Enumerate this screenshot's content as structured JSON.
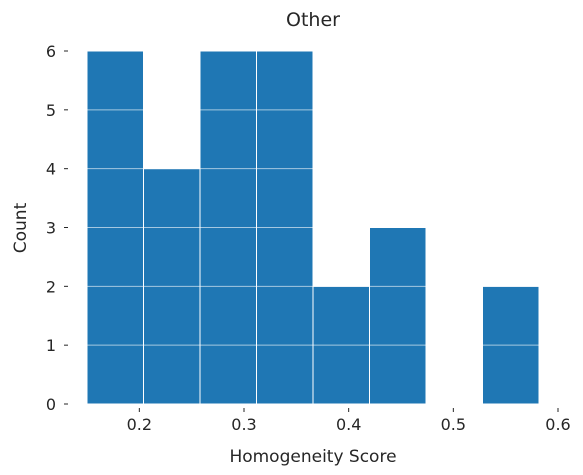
{
  "chart_data": {
    "type": "bar",
    "title": "Other",
    "xlabel": "Homogeneity Score",
    "ylabel": "Count",
    "bin_edges": [
      0.15,
      0.2041,
      0.2582,
      0.3123,
      0.3664,
      0.4205,
      0.4746,
      0.5287,
      0.5828
    ],
    "values": [
      6,
      4,
      6,
      6,
      2,
      3,
      0,
      2
    ],
    "xlim": [
      0.15,
      0.6
    ],
    "ylim": [
      0,
      6
    ],
    "xticks": [
      0.2,
      0.3,
      0.4,
      0.5,
      0.6
    ],
    "xtick_labels": [
      "0.2",
      "0.3",
      "0.4",
      "0.5",
      "0.6"
    ],
    "yticks": [
      0,
      1,
      2,
      3,
      4,
      5,
      6
    ],
    "ytick_labels": [
      "0",
      "1",
      "2",
      "3",
      "4",
      "5",
      "6"
    ],
    "grid": true,
    "colors": {
      "bar": "#1f77b4",
      "bar_edge": "#ffffff",
      "grid": "#ffffff",
      "text": "#262626"
    }
  }
}
